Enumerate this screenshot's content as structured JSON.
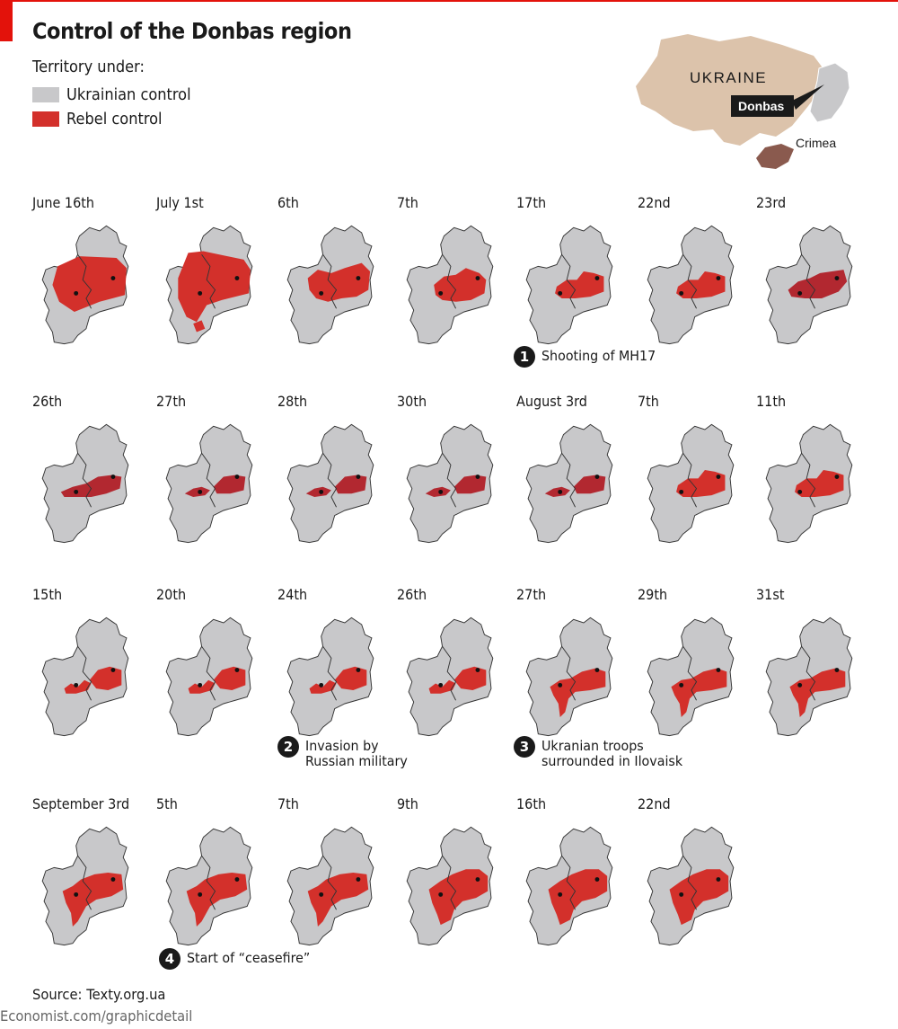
{
  "header": {
    "title": "Control of the Donbas region"
  },
  "legend": {
    "title": "Territory under:",
    "items": [
      {
        "label": "Ukrainian control",
        "color": "#c8c8ca"
      },
      {
        "label": "Rebel control",
        "color": "#d3302b"
      }
    ]
  },
  "inset": {
    "country_label": "UKRAINE",
    "donbas_label": "Donbas",
    "crimea_label": "Crimea"
  },
  "colors": {
    "ukrainian": "#c8c8ca",
    "rebel": "#d3302b",
    "rebel_dark": "#b22830",
    "border": "#333333",
    "country": "#dcc3ab",
    "crimea": "#8a5a4e",
    "accent": "#e3120b"
  },
  "panels": [
    {
      "date": "June 16th",
      "variant": "june16"
    },
    {
      "date": "July 1st",
      "variant": "july1"
    },
    {
      "date": "6th",
      "variant": "mid"
    },
    {
      "date": "7th",
      "variant": "mid_small"
    },
    {
      "date": "17th",
      "variant": "small"
    },
    {
      "date": "22nd",
      "variant": "small"
    },
    {
      "date": "23rd",
      "variant": "dark"
    },
    {
      "date": "26th",
      "variant": "dark_band"
    },
    {
      "date": "27th",
      "variant": "dark_split"
    },
    {
      "date": "28th",
      "variant": "dark_split"
    },
    {
      "date": "30th",
      "variant": "dark_split"
    },
    {
      "date": "August 3rd",
      "variant": "dark_split"
    },
    {
      "date": "7th",
      "variant": "small"
    },
    {
      "date": "11th",
      "variant": "small"
    },
    {
      "date": "15th",
      "variant": "frag"
    },
    {
      "date": "20th",
      "variant": "frag"
    },
    {
      "date": "24th",
      "variant": "frag"
    },
    {
      "date": "26th",
      "variant": "frag"
    },
    {
      "date": "27th",
      "variant": "south"
    },
    {
      "date": "29th",
      "variant": "south"
    },
    {
      "date": "31st",
      "variant": "south"
    },
    {
      "date": "September 3rd",
      "variant": "sept"
    },
    {
      "date": "5th",
      "variant": "sept"
    },
    {
      "date": "7th",
      "variant": "sept"
    },
    {
      "date": "9th",
      "variant": "sept_big"
    },
    {
      "date": "16th",
      "variant": "sept_big"
    },
    {
      "date": "22nd",
      "variant": "sept_big"
    }
  ],
  "events": [
    {
      "number": "1",
      "text": "Shooting of MH17"
    },
    {
      "number": "2",
      "text": "Invasion by\nRussian military"
    },
    {
      "number": "3",
      "text": "Ukranian troops\nsurrounded in Ilovaisk"
    },
    {
      "number": "4",
      "text": "Start of “ceasefire”"
    }
  ],
  "footer": {
    "source": "Source: Texty.org.ua",
    "credit": "Economist.com/graphicdetail"
  }
}
